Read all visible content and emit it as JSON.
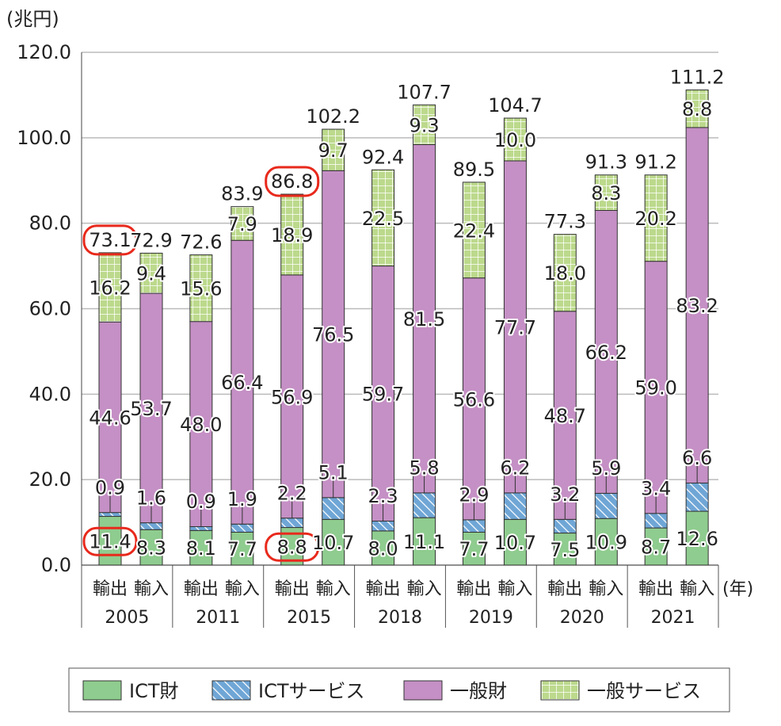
{
  "chart_data": {
    "type": "bar",
    "stacked": true,
    "ylabel": "(兆円)",
    "xlabel": "(年)",
    "ylim": [
      0,
      120
    ],
    "yticks": [
      "0.0",
      "20.0",
      "40.0",
      "60.0",
      "80.0",
      "100.0",
      "120.0"
    ],
    "grid": true,
    "legend_position": "bottom",
    "years": [
      "2005",
      "2011",
      "2015",
      "2018",
      "2019",
      "2020",
      "2021"
    ],
    "subcategories": [
      "輸出",
      "輸入"
    ],
    "series": [
      {
        "name": "ICT財",
        "color": "#8fcc8f",
        "pattern": "solid",
        "values": [
          11.4,
          8.3,
          8.1,
          7.7,
          8.8,
          10.7,
          8.0,
          11.1,
          7.7,
          10.7,
          7.5,
          10.9,
          8.7,
          12.6
        ]
      },
      {
        "name": "ICTサービス",
        "color": "#6fa6d6",
        "pattern": "hatch",
        "values": [
          0.9,
          1.6,
          0.9,
          1.9,
          2.2,
          5.1,
          2.3,
          5.8,
          2.9,
          6.2,
          3.2,
          5.9,
          3.4,
          6.6
        ]
      },
      {
        "name": "一般財",
        "color": "#c590c5",
        "pattern": "solid",
        "values": [
          44.6,
          53.7,
          48.0,
          66.4,
          56.9,
          76.5,
          59.7,
          81.5,
          56.6,
          77.7,
          48.7,
          66.2,
          59.0,
          83.2
        ]
      },
      {
        "name": "一般サービス",
        "color": "#bcd98c",
        "pattern": "grid",
        "values": [
          16.2,
          9.4,
          15.6,
          7.9,
          18.9,
          9.7,
          22.5,
          9.3,
          22.4,
          10.0,
          18.0,
          8.3,
          20.2,
          8.8
        ]
      }
    ],
    "totals": [
      "73.1",
      "72.9",
      "72.6",
      "83.9",
      "86.8",
      "102.2",
      "92.4",
      "107.7",
      "89.5",
      "104.7",
      "77.3",
      "91.3",
      "91.2",
      "111.2"
    ],
    "highlighted": [
      "2005 輸出 total 73.1",
      "2005 輸出 ICT財 11.4",
      "2015 輸出 total 86.8",
      "2015 輸出 ICT財 8.8"
    ],
    "highlight_color": "#e8291c"
  }
}
